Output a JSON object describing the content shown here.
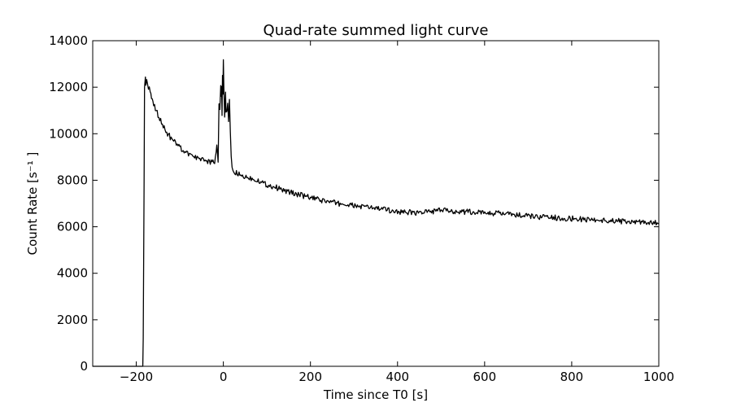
{
  "chart_data": {
    "type": "line",
    "title": "Quad-rate summed light curve",
    "xlabel": "Time since T0 [s]",
    "ylabel": "Count Rate [s⁻¹ ]",
    "xlim": [
      -300,
      1000
    ],
    "ylim": [
      0,
      14000
    ],
    "xticks": [
      -200,
      0,
      200,
      400,
      600,
      800,
      1000
    ],
    "xtick_labels": [
      "−200",
      "0",
      "200",
      "400",
      "600",
      "800",
      "1000"
    ],
    "yticks": [
      0,
      2000,
      4000,
      6000,
      8000,
      10000,
      12000,
      14000
    ],
    "ytick_labels": [
      "0",
      "2000",
      "4000",
      "6000",
      "8000",
      "10000",
      "12000",
      "14000"
    ],
    "grid": false,
    "legend": false,
    "line_color": "#000000",
    "series": [
      {
        "x": [
          -300,
          -185,
          -184,
          -182,
          -181,
          -179,
          -178,
          -176,
          -172,
          -168,
          -165,
          -160,
          -150,
          -140,
          -130,
          -120,
          -110,
          -100,
          -90,
          -80,
          -70,
          -60,
          -50,
          -40,
          -30,
          -20,
          -15,
          -12,
          -10,
          -8,
          -6,
          -5,
          -4,
          -3,
          -2,
          -1,
          0,
          1,
          2,
          3,
          4,
          5,
          6,
          8,
          10,
          12,
          14,
          16,
          18,
          20,
          25,
          30,
          40,
          60,
          80,
          100,
          120,
          140,
          160,
          180,
          200,
          220,
          250,
          280,
          300,
          350,
          400,
          450,
          500,
          550,
          600,
          650,
          700,
          750,
          800,
          850,
          900,
          950,
          1000
        ],
        "y": [
          0,
          0,
          1200,
          8000,
          12000,
          12400,
          12200,
          12250,
          12000,
          11800,
          11500,
          11300,
          10800,
          10400,
          10050,
          9800,
          9600,
          9400,
          9250,
          9100,
          9000,
          8950,
          8900,
          8850,
          8800,
          8780,
          9500,
          8700,
          11400,
          11000,
          12100,
          11600,
          12000,
          10800,
          12400,
          11800,
          13300,
          12000,
          11500,
          10700,
          11200,
          11800,
          10900,
          11000,
          11200,
          10600,
          11400,
          10000,
          9000,
          8500,
          8350,
          8300,
          8200,
          8100,
          8000,
          7800,
          7700,
          7550,
          7450,
          7350,
          7250,
          7150,
          7050,
          6950,
          6900,
          6800,
          6650,
          6600,
          6700,
          6650,
          6600,
          6550,
          6450,
          6400,
          6350,
          6300,
          6250,
          6200,
          6150
        ]
      }
    ]
  }
}
